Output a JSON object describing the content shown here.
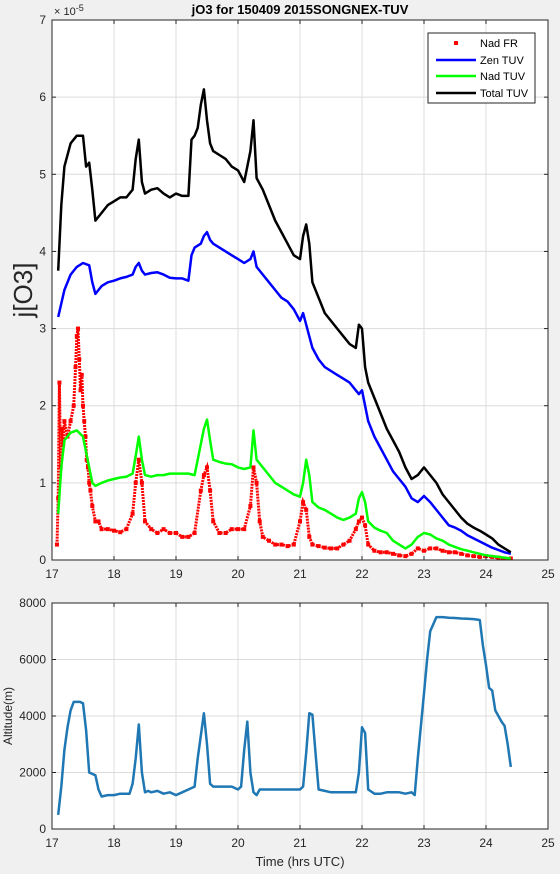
{
  "chart_data": [
    {
      "type": "line",
      "title": "jO3 for 150409 2015SONGNEX-TUV",
      "xlabel": "",
      "ylabel": "j[O3]",
      "exponent": "× 10",
      "exponent_power": "-5",
      "xlim": [
        17,
        25
      ],
      "ylim": [
        0,
        7
      ],
      "xticks": [
        17,
        18,
        19,
        20,
        21,
        22,
        23,
        24,
        25
      ],
      "yticks": [
        0,
        1,
        2,
        3,
        4,
        5,
        6,
        7
      ],
      "grid": true,
      "legend_position": "top-right",
      "series": [
        {
          "name": "Nad FR",
          "style": "markers",
          "color": "#ff0000",
          "x": [
            17.08,
            17.1,
            17.12,
            17.14,
            17.16,
            17.18,
            17.2,
            17.25,
            17.3,
            17.35,
            17.38,
            17.4,
            17.42,
            17.44,
            17.46,
            17.48,
            17.5,
            17.52,
            17.54,
            17.56,
            17.58,
            17.6,
            17.62,
            17.65,
            17.7,
            17.75,
            17.8,
            17.9,
            18.0,
            18.1,
            18.2,
            18.3,
            18.35,
            18.4,
            18.45,
            18.5,
            18.6,
            18.7,
            18.8,
            18.9,
            19.0,
            19.1,
            19.2,
            19.3,
            19.4,
            19.45,
            19.5,
            19.55,
            19.6,
            19.7,
            19.8,
            19.9,
            20.0,
            20.1,
            20.2,
            20.25,
            20.3,
            20.35,
            20.4,
            20.5,
            20.6,
            20.7,
            20.8,
            20.9,
            21.0,
            21.05,
            21.1,
            21.15,
            21.2,
            21.3,
            21.4,
            21.5,
            21.6,
            21.7,
            21.8,
            21.9,
            21.95,
            22.0,
            22.05,
            22.1,
            22.2,
            22.3,
            22.4,
            22.5,
            22.6,
            22.7,
            22.8,
            22.9,
            23.0,
            23.1,
            23.2,
            23.3,
            23.4,
            23.5,
            23.6,
            23.7,
            23.8,
            23.9,
            24.0,
            24.1,
            24.2,
            24.3,
            24.4
          ],
          "y": [
            0.2,
            0.8,
            2.3,
            1.2,
            1.7,
            1.5,
            1.8,
            1.6,
            1.8,
            2.0,
            2.5,
            2.9,
            3.0,
            2.6,
            2.2,
            2.4,
            2.0,
            1.8,
            1.6,
            1.3,
            1.2,
            1.0,
            0.9,
            0.7,
            0.5,
            0.5,
            0.4,
            0.4,
            0.38,
            0.36,
            0.4,
            0.6,
            1.0,
            1.3,
            1.0,
            0.5,
            0.4,
            0.35,
            0.4,
            0.35,
            0.35,
            0.3,
            0.3,
            0.35,
            0.9,
            1.1,
            1.2,
            0.9,
            0.5,
            0.35,
            0.35,
            0.4,
            0.4,
            0.4,
            0.7,
            1.2,
            1.0,
            0.5,
            0.3,
            0.25,
            0.2,
            0.2,
            0.18,
            0.2,
            0.5,
            0.75,
            0.65,
            0.3,
            0.2,
            0.18,
            0.16,
            0.15,
            0.15,
            0.2,
            0.25,
            0.4,
            0.5,
            0.55,
            0.45,
            0.2,
            0.12,
            0.1,
            0.1,
            0.08,
            0.06,
            0.05,
            0.08,
            0.15,
            0.12,
            0.15,
            0.15,
            0.12,
            0.1,
            0.1,
            0.08,
            0.06,
            0.05,
            0.04,
            0.05,
            0.04,
            0.03,
            0.02,
            0.02
          ]
        },
        {
          "name": "Zen TUV",
          "style": "line",
          "color": "#0000ff",
          "x": [
            17.1,
            17.2,
            17.3,
            17.4,
            17.5,
            17.6,
            17.65,
            17.7,
            17.8,
            17.9,
            18.0,
            18.1,
            18.2,
            18.3,
            18.35,
            18.4,
            18.45,
            18.5,
            18.6,
            18.7,
            18.8,
            18.9,
            19.0,
            19.1,
            19.2,
            19.25,
            19.3,
            19.4,
            19.45,
            19.5,
            19.55,
            19.6,
            19.7,
            19.8,
            19.9,
            20.0,
            20.1,
            20.2,
            20.25,
            20.3,
            20.4,
            20.5,
            20.6,
            20.7,
            20.8,
            20.9,
            21.0,
            21.05,
            21.1,
            21.15,
            21.2,
            21.3,
            21.4,
            21.5,
            21.6,
            21.7,
            21.8,
            21.9,
            21.95,
            22.0,
            22.05,
            22.1,
            22.2,
            22.3,
            22.4,
            22.5,
            22.6,
            22.7,
            22.8,
            22.9,
            23.0,
            23.1,
            23.2,
            23.3,
            23.4,
            23.5,
            23.6,
            23.7,
            23.8,
            23.9,
            24.0,
            24.1,
            24.2,
            24.3,
            24.4
          ],
          "y": [
            3.15,
            3.5,
            3.7,
            3.8,
            3.85,
            3.82,
            3.6,
            3.45,
            3.55,
            3.6,
            3.62,
            3.65,
            3.67,
            3.7,
            3.8,
            3.85,
            3.75,
            3.7,
            3.72,
            3.73,
            3.7,
            3.66,
            3.65,
            3.65,
            3.62,
            3.95,
            4.05,
            4.1,
            4.2,
            4.25,
            4.15,
            4.1,
            4.05,
            4.0,
            3.95,
            3.9,
            3.85,
            3.9,
            4.0,
            3.8,
            3.7,
            3.6,
            3.5,
            3.4,
            3.35,
            3.25,
            3.1,
            3.2,
            3.05,
            2.9,
            2.75,
            2.6,
            2.5,
            2.45,
            2.4,
            2.35,
            2.3,
            2.2,
            2.15,
            2.2,
            2.0,
            1.8,
            1.6,
            1.45,
            1.3,
            1.15,
            1.05,
            0.95,
            0.8,
            0.75,
            0.83,
            0.75,
            0.65,
            0.55,
            0.45,
            0.42,
            0.38,
            0.32,
            0.28,
            0.24,
            0.2,
            0.16,
            0.13,
            0.1,
            0.08
          ]
        },
        {
          "name": "Nad TUV",
          "style": "line",
          "color": "#00ff00",
          "x": [
            17.1,
            17.15,
            17.2,
            17.3,
            17.4,
            17.5,
            17.55,
            17.6,
            17.65,
            17.7,
            17.8,
            17.9,
            18.0,
            18.1,
            18.2,
            18.3,
            18.35,
            18.4,
            18.45,
            18.5,
            18.6,
            18.7,
            18.8,
            18.9,
            19.0,
            19.1,
            19.2,
            19.3,
            19.4,
            19.45,
            19.5,
            19.55,
            19.6,
            19.7,
            19.8,
            19.9,
            20.0,
            20.1,
            20.2,
            20.25,
            20.3,
            20.4,
            20.5,
            20.6,
            20.7,
            20.8,
            20.9,
            21.0,
            21.05,
            21.1,
            21.15,
            21.2,
            21.3,
            21.4,
            21.5,
            21.6,
            21.7,
            21.8,
            21.9,
            21.95,
            22.0,
            22.05,
            22.1,
            22.2,
            22.3,
            22.4,
            22.5,
            22.6,
            22.7,
            22.8,
            22.9,
            23.0,
            23.1,
            23.2,
            23.3,
            23.4,
            23.5,
            23.6,
            23.7,
            23.8,
            23.9,
            24.0,
            24.1,
            24.2,
            24.3,
            24.4
          ],
          "y": [
            0.6,
            1.2,
            1.55,
            1.65,
            1.68,
            1.6,
            1.4,
            1.2,
            1.0,
            0.96,
            1.0,
            1.03,
            1.05,
            1.07,
            1.08,
            1.12,
            1.35,
            1.6,
            1.3,
            1.1,
            1.08,
            1.1,
            1.1,
            1.12,
            1.12,
            1.12,
            1.12,
            1.1,
            1.5,
            1.7,
            1.82,
            1.55,
            1.3,
            1.27,
            1.25,
            1.24,
            1.2,
            1.18,
            1.2,
            1.68,
            1.3,
            1.2,
            1.1,
            1.0,
            0.95,
            0.9,
            0.85,
            0.82,
            1.0,
            1.3,
            1.1,
            0.75,
            0.68,
            0.65,
            0.6,
            0.55,
            0.52,
            0.55,
            0.6,
            0.8,
            0.88,
            0.75,
            0.5,
            0.42,
            0.38,
            0.35,
            0.25,
            0.2,
            0.15,
            0.2,
            0.3,
            0.35,
            0.33,
            0.28,
            0.25,
            0.2,
            0.17,
            0.14,
            0.12,
            0.1,
            0.08,
            0.06,
            0.05,
            0.04,
            0.03,
            0.02
          ]
        },
        {
          "name": "Total TUV",
          "style": "line",
          "color": "#000000",
          "x": [
            17.1,
            17.15,
            17.2,
            17.3,
            17.4,
            17.5,
            17.55,
            17.6,
            17.65,
            17.7,
            17.8,
            17.9,
            18.0,
            18.1,
            18.2,
            18.3,
            18.35,
            18.4,
            18.45,
            18.5,
            18.6,
            18.7,
            18.8,
            18.9,
            19.0,
            19.1,
            19.2,
            19.25,
            19.3,
            19.35,
            19.4,
            19.45,
            19.5,
            19.55,
            19.6,
            19.7,
            19.8,
            19.9,
            20.0,
            20.1,
            20.2,
            20.25,
            20.3,
            20.4,
            20.5,
            20.6,
            20.7,
            20.8,
            20.9,
            21.0,
            21.05,
            21.1,
            21.15,
            21.2,
            21.3,
            21.4,
            21.5,
            21.6,
            21.7,
            21.8,
            21.9,
            21.95,
            22.0,
            22.05,
            22.1,
            22.2,
            22.3,
            22.4,
            22.5,
            22.6,
            22.7,
            22.8,
            22.9,
            23.0,
            23.1,
            23.2,
            23.3,
            23.4,
            23.5,
            23.6,
            23.7,
            23.8,
            23.9,
            24.0,
            24.1,
            24.2,
            24.3,
            24.4
          ],
          "y": [
            3.75,
            4.6,
            5.1,
            5.4,
            5.5,
            5.5,
            5.1,
            5.15,
            4.8,
            4.4,
            4.5,
            4.6,
            4.65,
            4.7,
            4.7,
            4.8,
            5.2,
            5.45,
            4.9,
            4.75,
            4.8,
            4.82,
            4.75,
            4.7,
            4.75,
            4.72,
            4.72,
            5.45,
            5.5,
            5.6,
            5.9,
            6.1,
            5.7,
            5.4,
            5.3,
            5.25,
            5.2,
            5.1,
            5.05,
            4.9,
            5.3,
            5.7,
            4.95,
            4.8,
            4.6,
            4.4,
            4.25,
            4.1,
            3.95,
            3.9,
            4.2,
            4.35,
            4.1,
            3.6,
            3.4,
            3.2,
            3.1,
            3.0,
            2.9,
            2.8,
            2.75,
            3.05,
            3.0,
            2.5,
            2.3,
            2.1,
            1.9,
            1.7,
            1.55,
            1.4,
            1.2,
            1.05,
            1.1,
            1.2,
            1.1,
            1.0,
            0.85,
            0.75,
            0.65,
            0.55,
            0.47,
            0.42,
            0.38,
            0.33,
            0.28,
            0.2,
            0.15,
            0.1
          ]
        }
      ]
    },
    {
      "type": "line",
      "title": "",
      "xlabel": "Time (hrs UTC)",
      "ylabel": "Altitude(m)",
      "xlim": [
        17,
        25
      ],
      "ylim": [
        0,
        8000
      ],
      "xticks": [
        17,
        18,
        19,
        20,
        21,
        22,
        23,
        24,
        25
      ],
      "yticks": [
        0,
        2000,
        4000,
        6000,
        8000
      ],
      "grid": true,
      "series": [
        {
          "name": "",
          "style": "line",
          "color": "#1f77b4",
          "x": [
            17.1,
            17.15,
            17.2,
            17.25,
            17.3,
            17.35,
            17.4,
            17.45,
            17.5,
            17.55,
            17.6,
            17.65,
            17.7,
            17.75,
            17.8,
            17.9,
            18.0,
            18.1,
            18.2,
            18.25,
            18.3,
            18.35,
            18.4,
            18.45,
            18.5,
            18.55,
            18.6,
            18.7,
            18.8,
            18.9,
            19.0,
            19.1,
            19.2,
            19.3,
            19.35,
            19.4,
            19.45,
            19.5,
            19.55,
            19.6,
            19.7,
            19.8,
            19.9,
            20.0,
            20.05,
            20.1,
            20.15,
            20.2,
            20.25,
            20.3,
            20.35,
            20.4,
            20.5,
            20.6,
            20.7,
            20.8,
            20.9,
            21.0,
            21.05,
            21.1,
            21.15,
            21.2,
            21.25,
            21.3,
            21.4,
            21.5,
            21.6,
            21.7,
            21.8,
            21.9,
            21.95,
            22.0,
            22.05,
            22.1,
            22.2,
            22.3,
            22.4,
            22.5,
            22.6,
            22.7,
            22.8,
            22.85,
            22.9,
            23.0,
            23.05,
            23.1,
            23.2,
            23.3,
            23.4,
            23.5,
            23.6,
            23.7,
            23.8,
            23.9,
            23.95,
            24.0,
            24.05,
            24.1,
            24.15,
            24.2,
            24.25,
            24.3,
            24.35,
            24.4
          ],
          "y": [
            500,
            1500,
            2800,
            3600,
            4200,
            4500,
            4500,
            4500,
            4450,
            3500,
            2000,
            1950,
            1900,
            1400,
            1150,
            1200,
            1200,
            1250,
            1250,
            1250,
            1600,
            2500,
            3700,
            2000,
            1300,
            1350,
            1300,
            1350,
            1250,
            1300,
            1200,
            1300,
            1400,
            1500,
            2500,
            3300,
            4100,
            3000,
            1600,
            1500,
            1500,
            1500,
            1500,
            1400,
            1500,
            2800,
            3800,
            2000,
            1300,
            1200,
            1400,
            1400,
            1400,
            1400,
            1400,
            1400,
            1400,
            1400,
            1500,
            2700,
            4100,
            4050,
            2700,
            1400,
            1350,
            1300,
            1300,
            1300,
            1300,
            1300,
            2000,
            3600,
            3400,
            1400,
            1250,
            1250,
            1300,
            1300,
            1300,
            1250,
            1300,
            1200,
            2500,
            4800,
            6000,
            7000,
            7500,
            7500,
            7480,
            7470,
            7450,
            7440,
            7430,
            7400,
            6500,
            5800,
            5000,
            4900,
            4200,
            4000,
            3800,
            3650,
            3000,
            2200
          ]
        }
      ]
    }
  ]
}
